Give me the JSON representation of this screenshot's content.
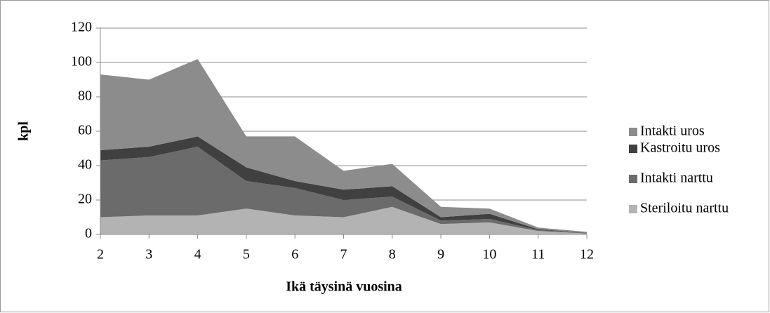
{
  "chart_data": {
    "type": "stacked_area",
    "y_label": "kpl",
    "x_label": "Ikä täysinä vuosina",
    "x": [
      2,
      3,
      4,
      5,
      6,
      7,
      8,
      9,
      10,
      11,
      12
    ],
    "xlim": [
      2,
      12
    ],
    "xticks": [
      2,
      3,
      4,
      5,
      6,
      7,
      8,
      9,
      10,
      11,
      12
    ],
    "ylim": [
      0,
      120
    ],
    "yticks": [
      0,
      20,
      40,
      60,
      80,
      100,
      120
    ],
    "grid": true,
    "legend": "right",
    "series": [
      {
        "name": "Steriloitu narttu",
        "color": "#b3b3b3",
        "values": [
          10,
          11,
          11,
          15,
          11,
          10,
          16,
          6,
          7,
          2,
          0.5
        ]
      },
      {
        "name": "Intakti narttu",
        "color": "#6b6b6b",
        "values": [
          33,
          34,
          40,
          16,
          16,
          10,
          6,
          2,
          2,
          0.5,
          0.5
        ]
      },
      {
        "name": "Kastroitu uros",
        "color": "#404040",
        "values": [
          6,
          6,
          6,
          8,
          4,
          6,
          6,
          2,
          3,
          0.5,
          0
        ]
      },
      {
        "name": "Intakti uros",
        "color": "#8c8c8c",
        "values": [
          44,
          39,
          45,
          18,
          26,
          11,
          13,
          6,
          3,
          1,
          0.5
        ]
      }
    ]
  }
}
